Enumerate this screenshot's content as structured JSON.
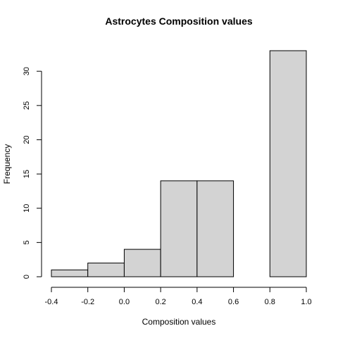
{
  "chart_data": {
    "type": "bar",
    "title": "Astrocytes Composition values",
    "xlabel": "Composition values",
    "ylabel": "Frequency",
    "bin_edges": [
      -0.4,
      -0.2,
      0.0,
      0.2,
      0.4,
      0.6,
      0.8,
      1.0
    ],
    "values": [
      1,
      2,
      4,
      14,
      14,
      0,
      33
    ],
    "xlim": [
      -0.4,
      1.0
    ],
    "ylim": [
      0,
      33
    ],
    "x_ticks": [
      -0.4,
      -0.2,
      0.0,
      0.2,
      0.4,
      0.6,
      0.8,
      1.0
    ],
    "x_tick_labels": [
      "-0.4",
      "-0.2",
      "0.0",
      "0.2",
      "0.4",
      "0.6",
      "0.8",
      "1.0"
    ],
    "y_ticks": [
      0,
      5,
      10,
      15,
      20,
      25,
      30
    ],
    "y_tick_labels": [
      "0",
      "5",
      "10",
      "15",
      "20",
      "25",
      "30"
    ],
    "grid": false,
    "bar_color": "#d3d3d3",
    "edge_color": "#000000"
  }
}
